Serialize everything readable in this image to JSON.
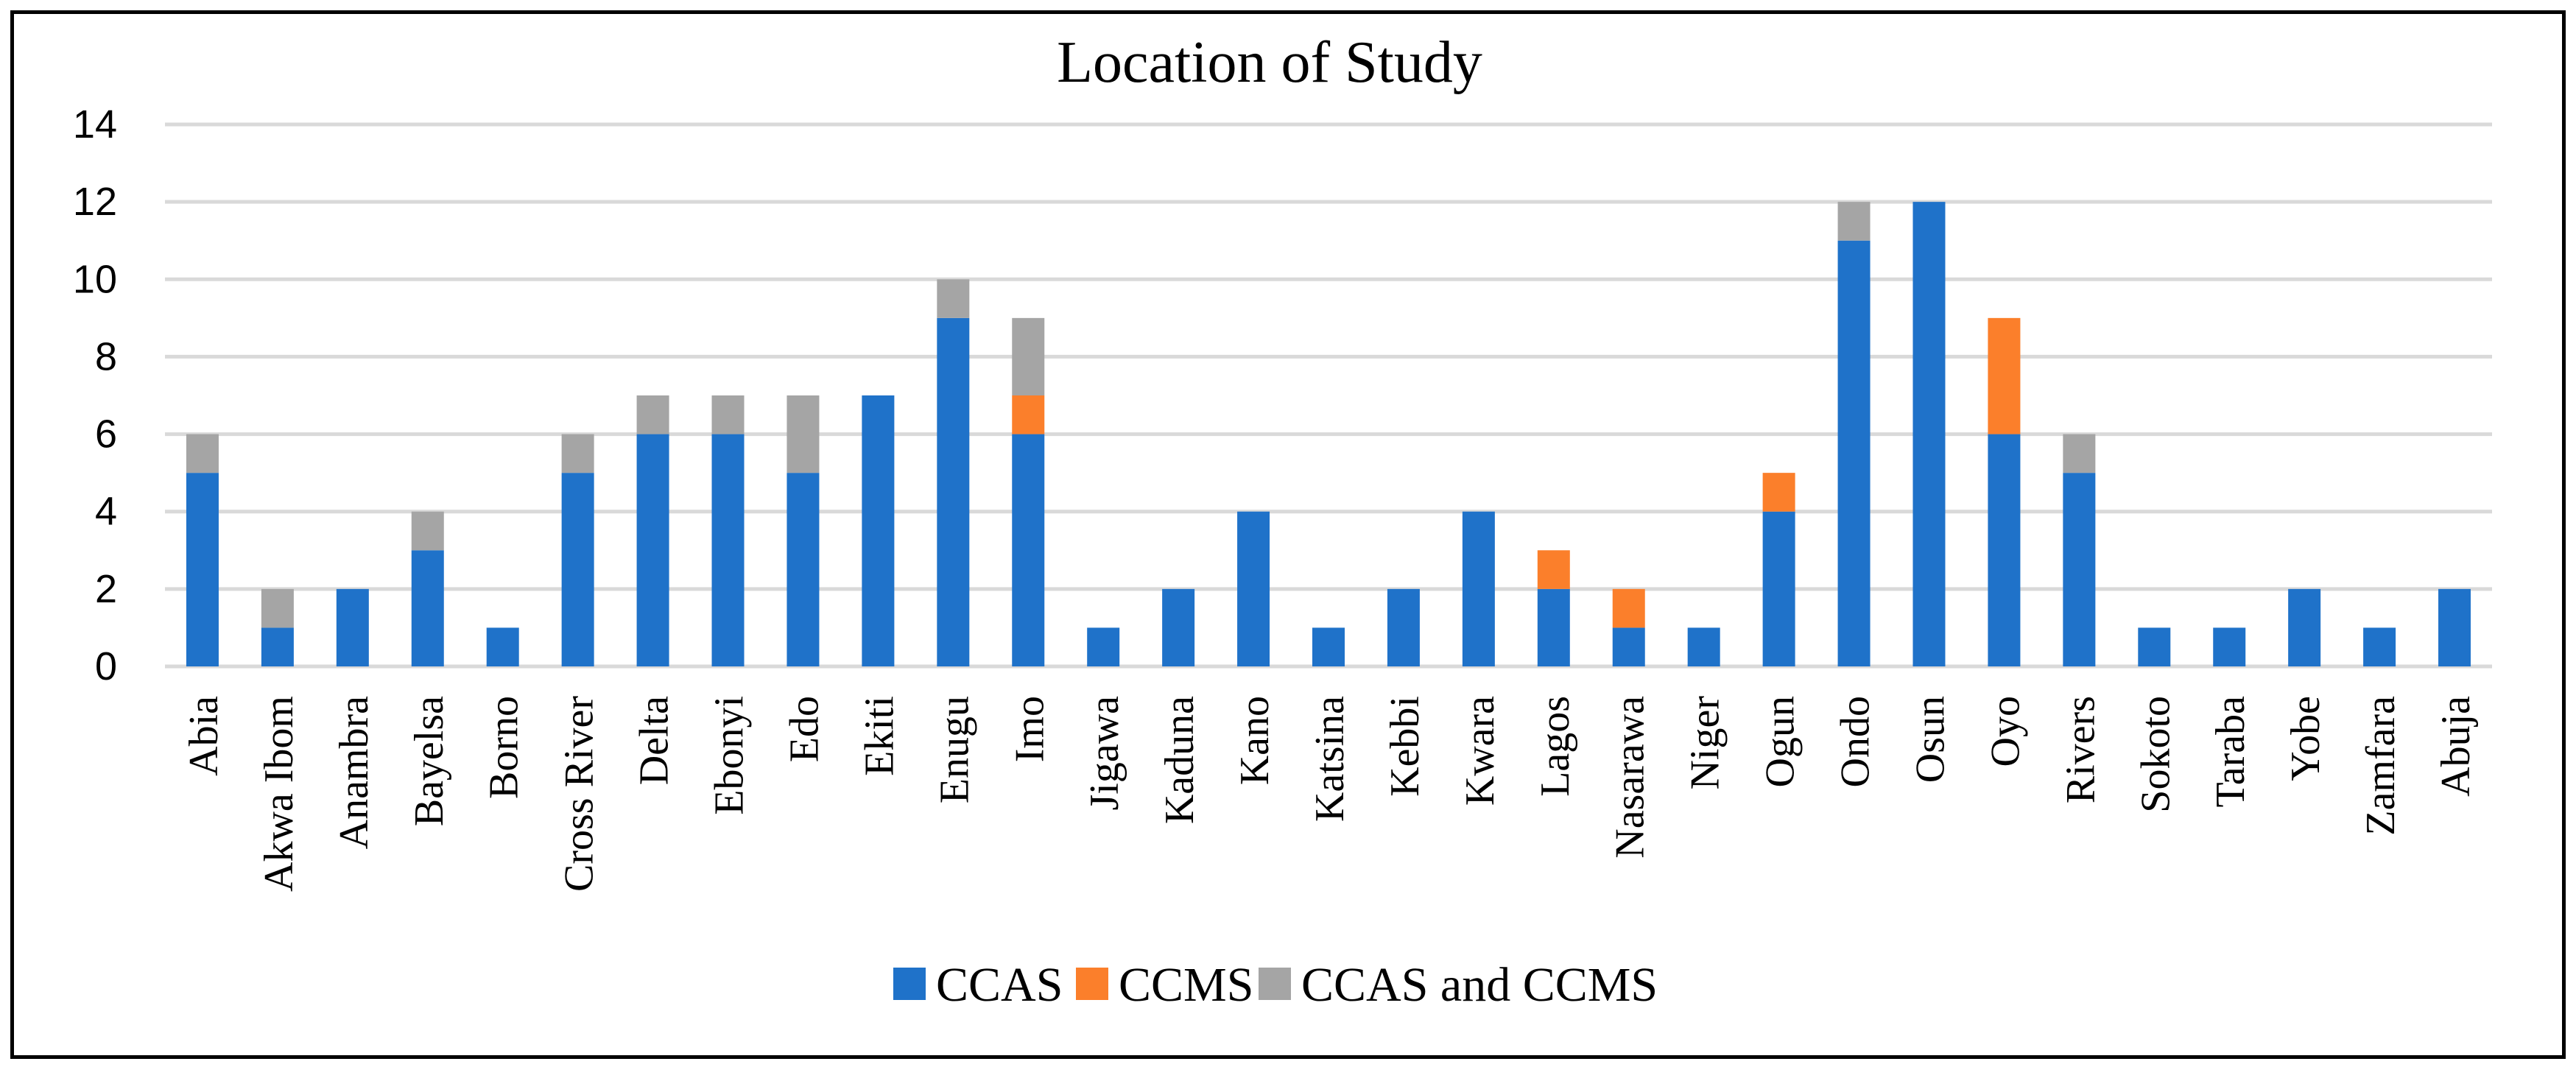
{
  "chart_data": {
    "type": "bar",
    "stacked": true,
    "title": "Location of Study",
    "xlabel": "",
    "ylabel": "",
    "ylim": [
      0,
      14
    ],
    "yticks": [
      0,
      2,
      4,
      6,
      8,
      10,
      12,
      14
    ],
    "grid": true,
    "legend_position": "bottom",
    "categories": [
      "Abia",
      "Akwa Ibom",
      "Anambra",
      "Bayelsa",
      "Borno",
      "Cross River",
      "Delta",
      "Ebonyi",
      "Edo",
      "Ekiti",
      "Enugu",
      "Imo",
      "Jigawa",
      "Kaduna",
      "Kano",
      "Katsina",
      "Kebbi",
      "Kwara",
      "Lagos",
      "Nasarawa",
      "Niger",
      "Ogun",
      "Ondo",
      "Osun",
      "Oyo",
      "Rivers",
      "Sokoto",
      "Taraba",
      "Yobe",
      "Zamfara",
      "Abuja"
    ],
    "series": [
      {
        "name": "CCAS",
        "color": "#1f72c9",
        "values": [
          5,
          1,
          2,
          3,
          1,
          5,
          6,
          6,
          5,
          7,
          9,
          6,
          1,
          2,
          4,
          1,
          2,
          4,
          2,
          1,
          1,
          4,
          11,
          12,
          6,
          5,
          1,
          1,
          2,
          1,
          2
        ]
      },
      {
        "name": "CCMS",
        "color": "#fb7f2b",
        "values": [
          0,
          0,
          0,
          0,
          0,
          0,
          0,
          0,
          0,
          0,
          0,
          1,
          0,
          0,
          0,
          0,
          0,
          0,
          1,
          1,
          0,
          1,
          0,
          0,
          3,
          0,
          0,
          0,
          0,
          0,
          0
        ]
      },
      {
        "name": "CCAS and CCMS",
        "color": "#a5a5a5",
        "values": [
          1,
          1,
          0,
          1,
          0,
          1,
          1,
          1,
          2,
          0,
          1,
          2,
          0,
          0,
          0,
          0,
          0,
          0,
          0,
          0,
          0,
          0,
          1,
          0,
          0,
          1,
          0,
          0,
          0,
          0,
          0
        ]
      }
    ]
  }
}
